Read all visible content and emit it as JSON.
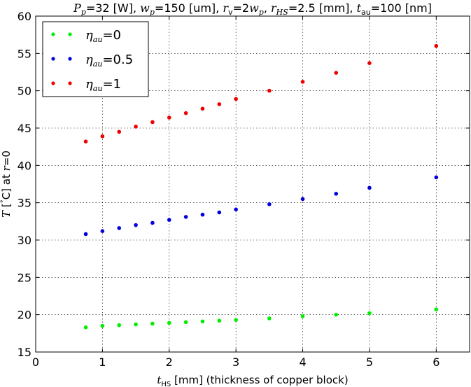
{
  "chart_data": {
    "type": "scatter",
    "title": "P_p = 32 [W], w_p = 150 [um], r_v = 2w_p, r_HS = 2.5 [mm], t_au = 100 [nm]",
    "title_parts": {
      "pp_symbol": "P",
      "pp_sub": "p",
      "pp_value": "=32 [W], ",
      "wp_symbol": "w",
      "wp_sub": "p",
      "wp_value": "=150 [um], ",
      "rv_symbol": "r",
      "rv_sub": "v",
      "rv_value_a": "=2",
      "rv_value_w": "w",
      "rv_value_wsub": "p",
      "rv_value_b": ", ",
      "rhs_symbol": "r",
      "rhs_sub": "HS",
      "rhs_value": "=2.5 [mm], ",
      "tau_symbol": "t",
      "tau_sub": "au",
      "tau_value": "=100 [nm]"
    },
    "xlabel": "t_HS [mm] (thickness of copper block)",
    "xlabel_parts": {
      "symbol": "t",
      "sub": "HS",
      "rest": " [mm] (thickness of copper block)"
    },
    "ylabel": "T [°C] at r=0",
    "ylabel_parts": {
      "symbol": "T",
      "bracket_open": " [",
      "degree": "°",
      "unit": "C] at ",
      "r_symbol": "r",
      "r_value": "=0"
    },
    "xlim": [
      0,
      6.5
    ],
    "ylim": [
      15,
      60
    ],
    "xticks": [
      0,
      1,
      2,
      3,
      4,
      5,
      6
    ],
    "yticks": [
      15,
      20,
      25,
      30,
      35,
      40,
      45,
      50,
      55,
      60
    ],
    "grid": true,
    "legend_position": "top-left",
    "x": [
      0.75,
      1.0,
      1.25,
      1.5,
      1.75,
      2.0,
      2.25,
      2.5,
      2.75,
      3.0,
      3.5,
      4.0,
      4.5,
      5.0,
      6.0
    ],
    "series": [
      {
        "name": "η_au=0",
        "label_symbol": "η",
        "label_sub": "au",
        "label_value": "=0",
        "color": "#00ee00",
        "values": [
          18.3,
          18.5,
          18.6,
          18.7,
          18.8,
          18.9,
          19.0,
          19.1,
          19.2,
          19.3,
          19.5,
          19.8,
          20.0,
          20.2,
          20.7
        ]
      },
      {
        "name": "η_au=0.5",
        "label_symbol": "η",
        "label_sub": "au",
        "label_value": "=0.5",
        "color": "#0000dd",
        "values": [
          30.8,
          31.2,
          31.6,
          32.0,
          32.3,
          32.7,
          33.1,
          33.4,
          33.7,
          34.1,
          34.8,
          35.5,
          36.2,
          37.0,
          38.4
        ]
      },
      {
        "name": "η_au=1",
        "label_symbol": "η",
        "label_sub": "au",
        "label_value": "=1",
        "color": "#ee0000",
        "values": [
          43.2,
          43.9,
          44.5,
          45.2,
          45.8,
          46.4,
          47.0,
          47.6,
          48.2,
          48.9,
          50.0,
          51.2,
          52.4,
          53.7,
          56.0
        ]
      }
    ]
  }
}
